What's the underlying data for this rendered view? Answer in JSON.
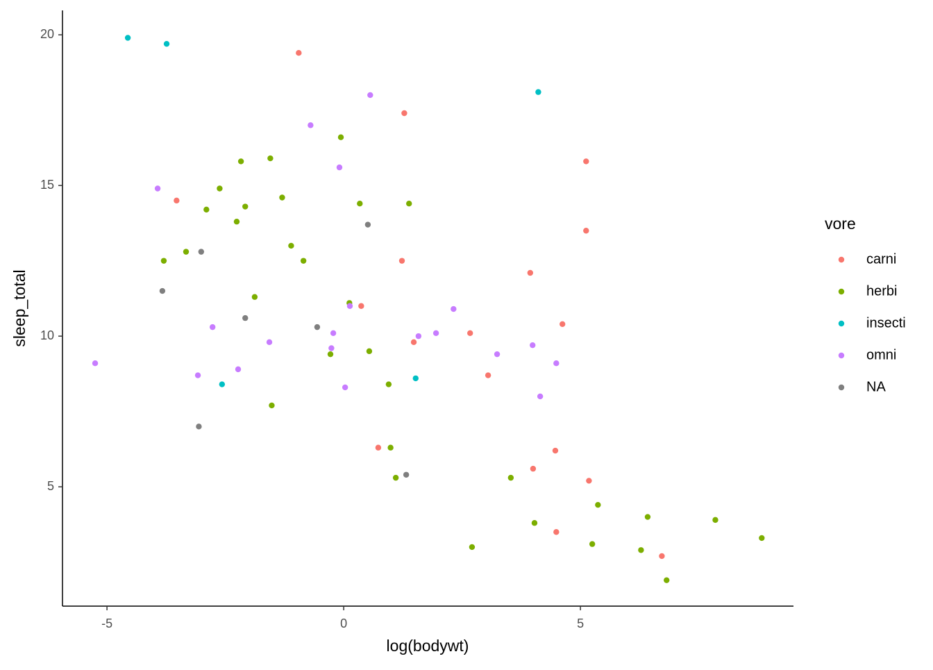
{
  "chart_data": {
    "type": "scatter",
    "x_label": "log(bodywt)",
    "y_label": "sleep_total",
    "xlim": [
      -5.94,
      9.5
    ],
    "ylim": [
      1.04,
      20.81
    ],
    "xticks": [
      -5,
      0,
      5
    ],
    "yticks": [
      5,
      10,
      15,
      20
    ],
    "grid": false,
    "legend_title": "vore",
    "legend_position": "right",
    "series": [
      {
        "name": "carni",
        "color": "#F8766D",
        "x": [
          -0.95,
          1.28,
          5.12,
          -3.53,
          5.12,
          1.23,
          3.94,
          0.37,
          4.62,
          2.67,
          1.48,
          3.05,
          0.73,
          4.47,
          4.0,
          5.18,
          4.49,
          6.72
        ],
        "values": [
          19.4,
          17.4,
          15.8,
          14.5,
          13.5,
          12.5,
          12.1,
          11.0,
          10.4,
          10.1,
          9.8,
          8.7,
          6.3,
          6.2,
          5.6,
          5.2,
          3.5,
          2.7
        ]
      },
      {
        "name": "herbi",
        "color": "#7CAE00",
        "x": [
          -0.06,
          -1.55,
          -2.17,
          -2.62,
          -1.3,
          0.34,
          1.38,
          -2.9,
          -2.08,
          -2.26,
          -1.11,
          -3.33,
          -0.85,
          -3.8,
          -1.88,
          0.12,
          -0.28,
          0.54,
          0.95,
          -1.52,
          0.99,
          1.1,
          3.53,
          5.37,
          6.42,
          4.03,
          7.85,
          5.25,
          2.71,
          6.28,
          8.83,
          6.82
        ],
        "values": [
          16.6,
          15.9,
          15.8,
          14.9,
          14.6,
          14.4,
          14.4,
          14.2,
          14.3,
          13.8,
          13.0,
          12.8,
          12.5,
          12.5,
          11.3,
          11.1,
          9.4,
          9.5,
          8.4,
          7.7,
          6.3,
          5.3,
          5.3,
          4.4,
          4.0,
          3.8,
          3.9,
          3.1,
          3.0,
          2.9,
          3.3,
          1.9
        ]
      },
      {
        "name": "insecti",
        "color": "#00BFC4",
        "x": [
          -4.56,
          -3.74,
          4.11,
          -2.57,
          1.52
        ],
        "values": [
          19.9,
          19.7,
          18.1,
          8.4,
          8.6
        ]
      },
      {
        "name": "omni",
        "color": "#C77CFF",
        "x": [
          0.56,
          -0.7,
          -0.09,
          -3.93,
          2.32,
          0.13,
          -2.77,
          -0.22,
          1.95,
          1.58,
          -1.57,
          3.99,
          -0.26,
          3.24,
          4.49,
          -5.25,
          -2.23,
          -3.08,
          0.03,
          4.15
        ],
        "values": [
          18.0,
          17.0,
          15.6,
          14.9,
          10.9,
          11.0,
          10.3,
          10.1,
          10.1,
          10.0,
          9.8,
          9.7,
          9.6,
          9.4,
          9.1,
          9.1,
          8.9,
          8.7,
          8.3,
          8.0
        ]
      },
      {
        "name": "NA",
        "color": "#7F7F7F",
        "x": [
          0.51,
          -3.01,
          -3.83,
          -2.08,
          -0.56,
          -3.06,
          1.32
        ],
        "values": [
          13.7,
          12.8,
          11.5,
          10.6,
          10.3,
          7.0,
          5.4
        ]
      }
    ]
  }
}
